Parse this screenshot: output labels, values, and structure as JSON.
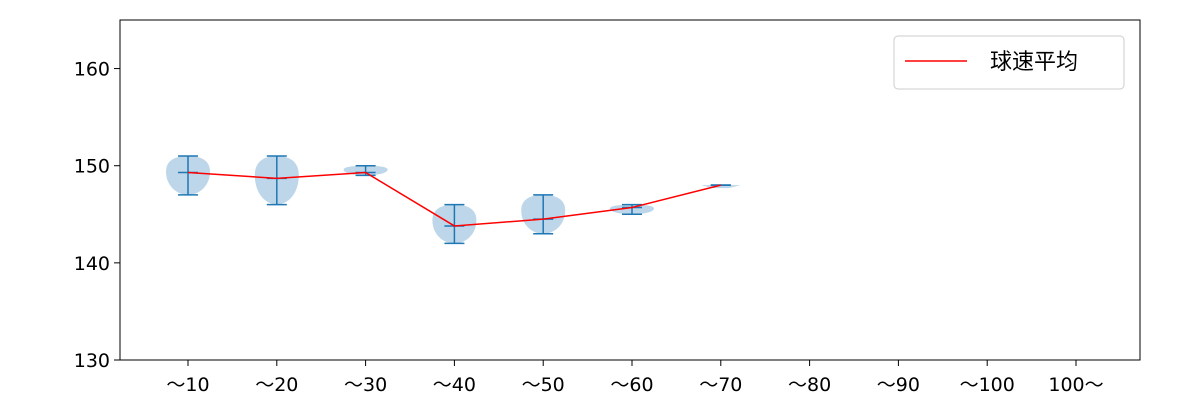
{
  "chart_data": {
    "type": "violin",
    "title": "",
    "xlabel": "",
    "ylabel": "",
    "ylim": [
      130,
      165
    ],
    "yticks": [
      130,
      140,
      150,
      160
    ],
    "categories": [
      "～10",
      "～20",
      "～30",
      "～40",
      "～50",
      "～60",
      "～70",
      "～80",
      "～90",
      "～100",
      "100～"
    ],
    "violins": [
      {
        "category": "～10",
        "min": 147,
        "max": 151,
        "mean": 149.3
      },
      {
        "category": "～20",
        "min": 146,
        "max": 151,
        "mean": 148.7
      },
      {
        "category": "～30",
        "min": 149,
        "max": 150,
        "mean": 149.3
      },
      {
        "category": "～40",
        "min": 142,
        "max": 146,
        "mean": 143.8
      },
      {
        "category": "～50",
        "min": 143,
        "max": 147,
        "mean": 144.5
      },
      {
        "category": "～60",
        "min": 145,
        "max": 146,
        "mean": 145.7
      },
      {
        "category": "～70",
        "min": 148,
        "max": 148,
        "mean": 148
      }
    ],
    "series": [
      {
        "name": "球速平均",
        "color": "#ff0000",
        "values": [
          149.3,
          148.7,
          149.3,
          143.8,
          144.5,
          145.7,
          148
        ]
      }
    ],
    "legend": {
      "position": "top-right",
      "label": "球速平均"
    },
    "colors": {
      "violin_fill": "#a8c8e1",
      "violin_edge": "#1f77b4",
      "mean_line": "#ff0000",
      "axis": "#000000"
    },
    "grid": false
  }
}
